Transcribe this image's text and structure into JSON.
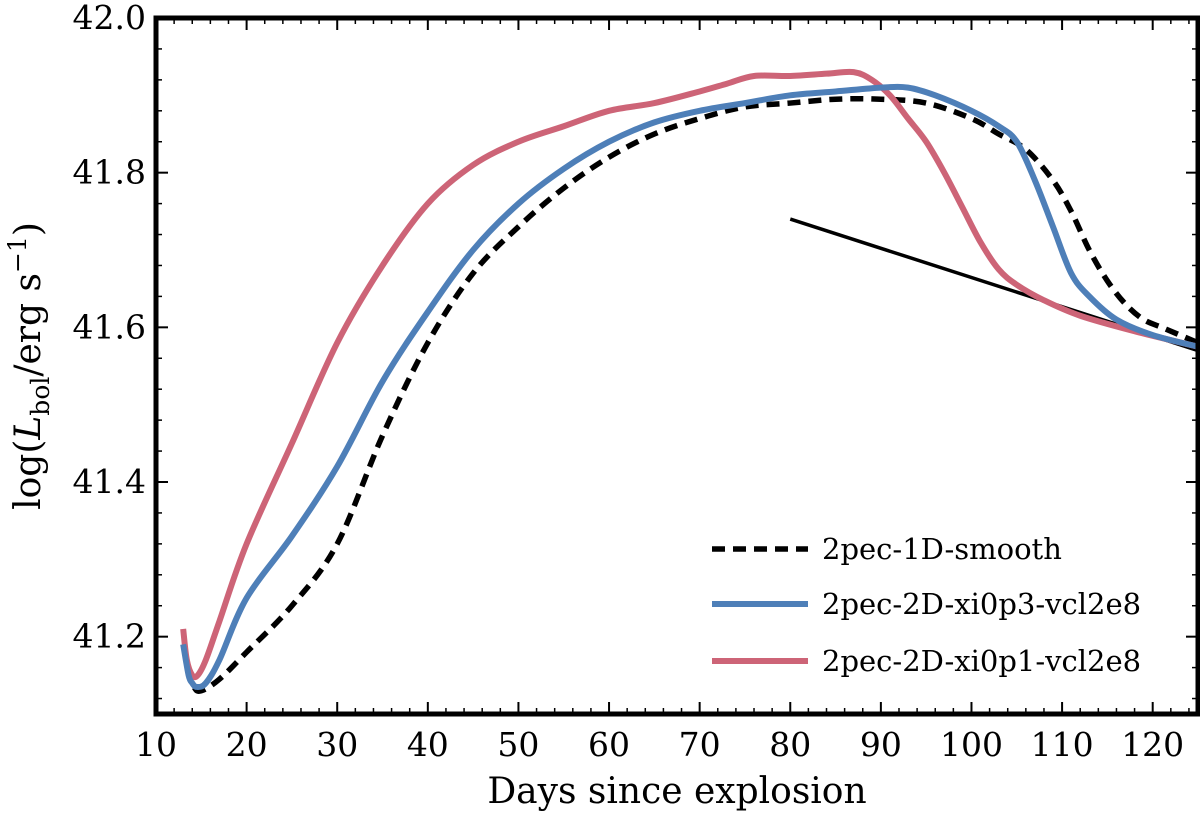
{
  "chart_data": {
    "type": "line",
    "title": "",
    "xlabel": "Days since explosion",
    "ylabel": {
      "prefix": "log(",
      "L": "L",
      "L_sub": "bol",
      "mid": "/erg s",
      "sup": "−1",
      "suffix": ")"
    },
    "xlim": [
      10,
      125
    ],
    "ylim": [
      41.1,
      42.0
    ],
    "xticks": [
      10,
      20,
      30,
      40,
      50,
      60,
      70,
      80,
      90,
      100,
      110,
      120
    ],
    "yticks": [
      41.2,
      41.4,
      41.6,
      41.8,
      42.0
    ],
    "ytick_labels": [
      "41.2",
      "41.4",
      "41.6",
      "41.8",
      "42.0"
    ],
    "grid": false,
    "legend_position": "lower-right",
    "series": [
      {
        "name": "2pec-1D-smooth",
        "color": "#000000",
        "dash": "dashed",
        "x": [
          13.5,
          14.2,
          15,
          17,
          20,
          25,
          30,
          35,
          40,
          45,
          50,
          55,
          60,
          65,
          70,
          75,
          80,
          85,
          90,
          95,
          100,
          103,
          106,
          109,
          111,
          113,
          115,
          117,
          119,
          121,
          123,
          125
        ],
        "y": [
          41.16,
          41.135,
          41.13,
          41.145,
          41.18,
          41.24,
          41.32,
          41.46,
          41.58,
          41.67,
          41.73,
          41.78,
          41.82,
          41.85,
          41.87,
          41.885,
          41.89,
          41.895,
          41.895,
          41.89,
          41.87,
          41.85,
          41.83,
          41.79,
          41.75,
          41.7,
          41.66,
          41.63,
          41.61,
          41.6,
          41.59,
          41.58
        ]
      },
      {
        "name": "2pec-2D-xi0p3-vcl2e8",
        "color": "#4e7fb8",
        "dash": "solid",
        "x": [
          13,
          13.6,
          14,
          14.5,
          15.5,
          17,
          20,
          25,
          30,
          35,
          40,
          45,
          50,
          55,
          60,
          65,
          70,
          75,
          80,
          85,
          90,
          93,
          96,
          100,
          103,
          105,
          107,
          109,
          111,
          113,
          116,
          120,
          125
        ],
        "y": [
          41.19,
          41.15,
          41.14,
          41.135,
          41.14,
          41.17,
          41.25,
          41.33,
          41.42,
          41.53,
          41.62,
          41.7,
          41.76,
          41.805,
          41.84,
          41.865,
          41.88,
          41.89,
          41.9,
          41.905,
          41.91,
          41.91,
          41.9,
          41.88,
          41.86,
          41.84,
          41.79,
          41.73,
          41.67,
          41.64,
          41.61,
          41.59,
          41.575
        ]
      },
      {
        "name": "2pec-2D-xi0p1-vcl2e8",
        "color": "#cd6477",
        "dash": "solid",
        "x": [
          13,
          13.4,
          14,
          14.6,
          15.5,
          17,
          20,
          25,
          30,
          35,
          40,
          45,
          50,
          55,
          60,
          65,
          70,
          73,
          76,
          80,
          84,
          87,
          89,
          91,
          93,
          95,
          97,
          99,
          101,
          103,
          105,
          108,
          112,
          118,
          125
        ],
        "y": [
          41.21,
          41.17,
          41.15,
          41.15,
          41.17,
          41.22,
          41.32,
          41.45,
          41.58,
          41.68,
          41.76,
          41.81,
          41.84,
          41.86,
          41.88,
          41.89,
          41.905,
          41.915,
          41.925,
          41.925,
          41.928,
          41.93,
          41.92,
          41.9,
          41.87,
          41.84,
          41.8,
          41.755,
          41.71,
          41.675,
          41.655,
          41.635,
          41.615,
          41.595,
          41.575
        ]
      }
    ],
    "annotations": [
      {
        "kind": "reference-line",
        "x": [
          80,
          125
        ],
        "y": [
          41.74,
          41.57
        ],
        "color": "#000000"
      }
    ]
  }
}
